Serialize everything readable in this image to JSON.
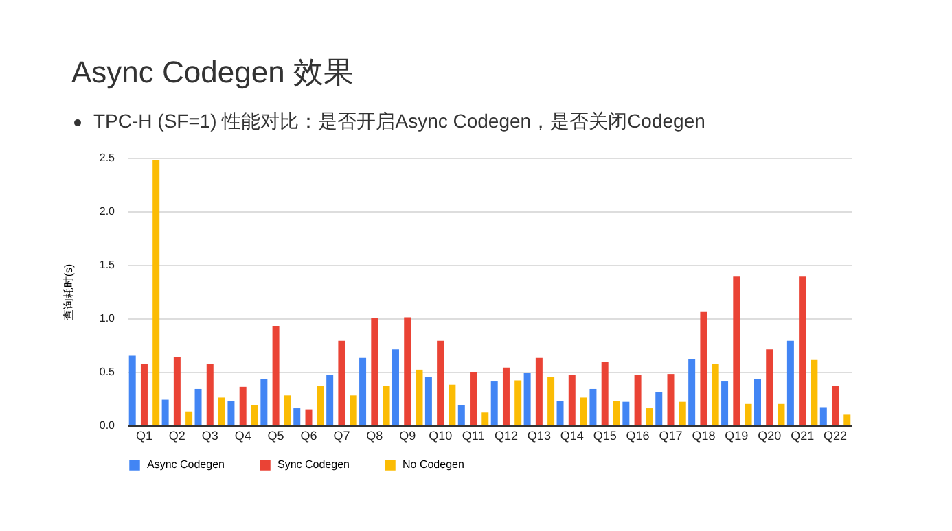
{
  "chart_data": {
    "type": "bar",
    "title": "Async Codegen 效果",
    "subtitle": "TPC-H (SF=1) 性能对比：是否开启Async Codegen，是否关闭Codegen",
    "ylabel": "查询耗时(s)",
    "categories": [
      "Q1",
      "Q2",
      "Q3",
      "Q4",
      "Q5",
      "Q6",
      "Q7",
      "Q8",
      "Q9",
      "Q10",
      "Q11",
      "Q12",
      "Q13",
      "Q14",
      "Q15",
      "Q16",
      "Q17",
      "Q18",
      "Q19",
      "Q20",
      "Q21",
      "Q22"
    ],
    "series": [
      {
        "name": "Async Codegen",
        "color": "#4285f4",
        "values": [
          0.65,
          0.24,
          0.34,
          0.23,
          0.43,
          0.16,
          0.47,
          0.63,
          0.71,
          0.45,
          0.19,
          0.41,
          0.49,
          0.23,
          0.34,
          0.22,
          0.31,
          0.62,
          0.41,
          0.43,
          0.79,
          0.17
        ]
      },
      {
        "name": "Sync Codegen",
        "color": "#ea4335",
        "values": [
          0.57,
          0.64,
          0.57,
          0.36,
          0.93,
          0.15,
          0.79,
          1.0,
          1.01,
          0.79,
          0.5,
          0.54,
          0.63,
          0.47,
          0.59,
          0.47,
          0.48,
          1.06,
          1.39,
          0.71,
          1.39,
          0.37
        ]
      },
      {
        "name": "No Codegen",
        "color": "#fbbc04",
        "values": [
          2.48,
          0.13,
          0.26,
          0.19,
          0.28,
          0.37,
          0.28,
          0.37,
          0.52,
          0.38,
          0.12,
          0.42,
          0.45,
          0.26,
          0.23,
          0.16,
          0.22,
          0.57,
          0.2,
          0.2,
          0.61,
          0.1
        ]
      }
    ],
    "ylim": [
      0,
      2.5
    ],
    "yticks": [
      {
        "value": 0,
        "label": "0.0"
      },
      0.5,
      {
        "value": 1,
        "label": "1.0"
      },
      1.5,
      {
        "value": 2,
        "label": "2.0"
      },
      2.5
    ],
    "grid": "y",
    "legend": "bottom"
  }
}
